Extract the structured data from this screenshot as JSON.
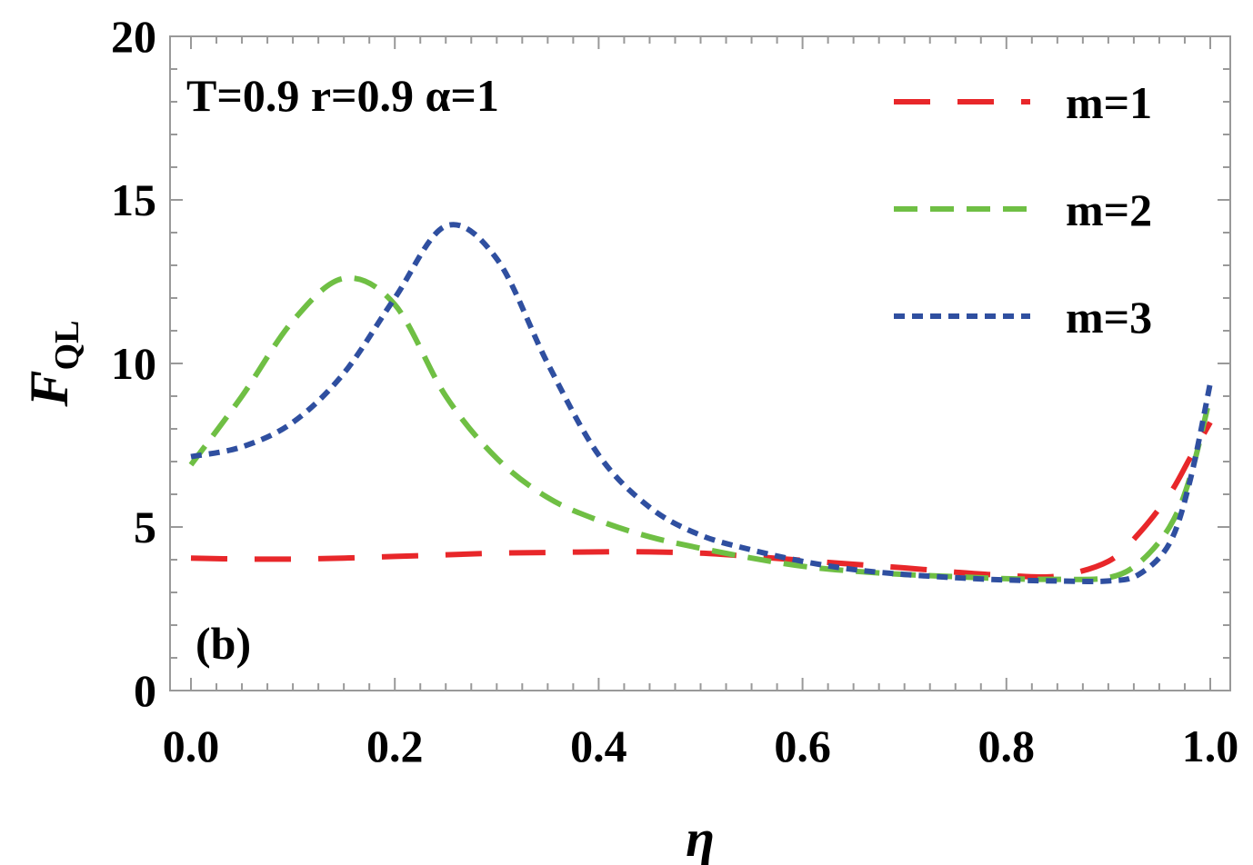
{
  "chart_data": {
    "type": "line",
    "xlabel": "η",
    "ylabel": "F",
    "ylabel_sub": "QL",
    "xlim": [
      0.0,
      1.0
    ],
    "ylim": [
      0,
      20
    ],
    "x_ticks": [
      "0.0",
      "0.2",
      "0.4",
      "0.6",
      "0.8",
      "1.0"
    ],
    "y_ticks": [
      "0",
      "5",
      "10",
      "15",
      "20"
    ],
    "annotation": "T=0.9 r=0.9 α=1",
    "panel_label": "(b)",
    "legend_position": "top-right",
    "grid": false,
    "x": [
      0.0,
      0.05,
      0.1,
      0.15,
      0.2,
      0.25,
      0.3,
      0.35,
      0.4,
      0.45,
      0.5,
      0.55,
      0.6,
      0.65,
      0.7,
      0.75,
      0.8,
      0.85,
      0.9,
      0.93,
      0.96,
      0.98,
      1.0
    ],
    "series": [
      {
        "name": "m=1",
        "color": "#e8272a",
        "dash": "40,30",
        "values": [
          4.05,
          4.02,
          4.02,
          4.05,
          4.1,
          4.15,
          4.2,
          4.22,
          4.24,
          4.24,
          4.2,
          4.1,
          3.98,
          3.86,
          3.75,
          3.62,
          3.52,
          3.5,
          3.95,
          4.8,
          6.0,
          7.1,
          8.2
        ]
      },
      {
        "name": "m=2",
        "color": "#6fbf44",
        "dash": "26,14",
        "values": [
          6.9,
          9.0,
          11.3,
          12.6,
          11.8,
          9.0,
          7.1,
          5.9,
          5.2,
          4.7,
          4.35,
          4.05,
          3.8,
          3.65,
          3.55,
          3.48,
          3.42,
          3.4,
          3.45,
          3.9,
          5.0,
          6.5,
          9.0
        ]
      },
      {
        "name": "m=3",
        "color": "#2f4fa0",
        "dash": "12,8",
        "values": [
          7.15,
          7.45,
          8.2,
          9.7,
          12.0,
          14.2,
          13.2,
          10.0,
          7.2,
          5.6,
          4.75,
          4.3,
          3.95,
          3.7,
          3.55,
          3.45,
          3.38,
          3.35,
          3.35,
          3.55,
          4.5,
          6.4,
          9.4
        ]
      }
    ]
  }
}
